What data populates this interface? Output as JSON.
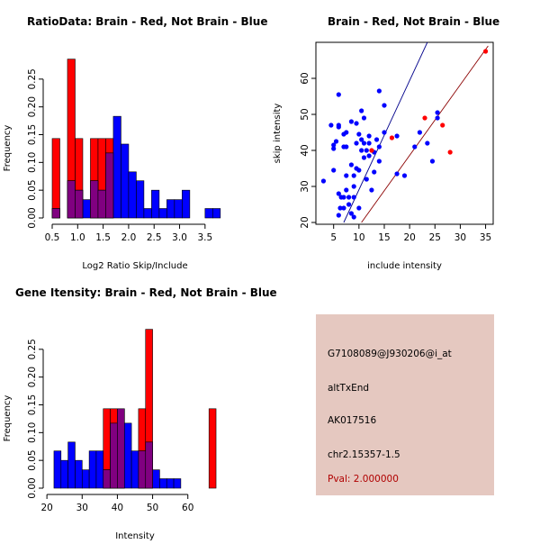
{
  "chart_data": [
    {
      "type": "bar",
      "subtype": "histogram-overlay",
      "title": "RatioData: Brain - Red, Not Brain - Blue",
      "xlabel": "Log2 Ratio Skip/Include",
      "ylabel": "Frequency",
      "xlim": [
        0.5,
        3.75
      ],
      "ylim": [
        0,
        0.3
      ],
      "bin_width": 0.15,
      "xticks": [
        0.5,
        1.0,
        1.5,
        2.0,
        2.5,
        3.0,
        3.5
      ],
      "xtick_labels": [
        "0.5",
        "1.0",
        "1.5",
        "2.0",
        "2.5",
        "3.0",
        "3.5"
      ],
      "yticks": [
        0,
        0.05,
        0.1,
        0.15,
        0.2,
        0.25
      ],
      "ytick_labels": [
        "0.00",
        "0.05",
        "0.10",
        "0.15",
        "0.20",
        "0.25"
      ],
      "series": [
        {
          "name": "Brain",
          "color": "#ff0000",
          "bins": [
            [
              0.5,
              0.143
            ],
            [
              0.8,
              0.286
            ],
            [
              0.95,
              0.143
            ],
            [
              1.25,
              0.143
            ],
            [
              1.4,
              0.143
            ],
            [
              1.55,
              0.143
            ]
          ]
        },
        {
          "name": "Not Brain",
          "color": "#0000ff",
          "bins": [
            [
              0.5,
              0.017
            ],
            [
              0.8,
              0.067
            ],
            [
              0.95,
              0.05
            ],
            [
              1.1,
              0.033
            ],
            [
              1.25,
              0.067
            ],
            [
              1.4,
              0.05
            ],
            [
              1.55,
              0.117
            ],
            [
              1.7,
              0.183
            ],
            [
              1.85,
              0.133
            ],
            [
              2.0,
              0.083
            ],
            [
              2.15,
              0.067
            ],
            [
              2.3,
              0.017
            ],
            [
              2.45,
              0.05
            ],
            [
              2.6,
              0.017
            ],
            [
              2.75,
              0.033
            ],
            [
              2.9,
              0.033
            ],
            [
              3.05,
              0.05
            ],
            [
              3.5,
              0.017
            ],
            [
              3.65,
              0.017
            ]
          ]
        }
      ]
    },
    {
      "type": "scatter",
      "title": "Brain - Red, Not Brain - Blue",
      "xlabel": "include intensity",
      "ylabel": "skip intensity",
      "xlim": [
        1.5,
        36.5
      ],
      "ylim": [
        19.5,
        70
      ],
      "xticks": [
        5,
        10,
        15,
        20,
        25,
        30,
        35
      ],
      "yticks": [
        20,
        30,
        40,
        50,
        60
      ],
      "series": [
        {
          "name": "Not Brain",
          "color": "#0000ff",
          "points": [
            [
              3,
              31.5
            ],
            [
              4.5,
              47
            ],
            [
              5,
              34.5
            ],
            [
              5,
              40.5
            ],
            [
              5,
              41.5
            ],
            [
              5.5,
              42.5
            ],
            [
              6,
              46.5
            ],
            [
              6,
              55.5
            ],
            [
              6,
              47
            ],
            [
              6,
              28
            ],
            [
              6,
              22
            ],
            [
              6.3,
              24
            ],
            [
              6.5,
              27
            ],
            [
              7,
              41
            ],
            [
              7,
              27
            ],
            [
              7,
              24
            ],
            [
              7,
              44.5
            ],
            [
              7.5,
              45
            ],
            [
              7.5,
              41
            ],
            [
              7.5,
              33
            ],
            [
              7.5,
              29
            ],
            [
              8,
              25
            ],
            [
              8,
              27
            ],
            [
              8.5,
              48
            ],
            [
              8.5,
              36
            ],
            [
              8.5,
              22.5
            ],
            [
              9,
              27
            ],
            [
              9,
              30
            ],
            [
              9,
              33
            ],
            [
              9,
              21.5
            ],
            [
              9.5,
              47.5
            ],
            [
              9.5,
              42
            ],
            [
              9.5,
              35
            ],
            [
              10,
              44.5
            ],
            [
              10,
              34.5
            ],
            [
              10,
              24
            ],
            [
              10.5,
              51
            ],
            [
              10.5,
              43
            ],
            [
              10.5,
              40
            ],
            [
              11,
              49
            ],
            [
              11,
              42
            ],
            [
              11,
              38
            ],
            [
              11.5,
              40
            ],
            [
              11.5,
              32
            ],
            [
              12,
              44
            ],
            [
              12,
              42
            ],
            [
              12,
              38.5
            ],
            [
              12.5,
              29
            ],
            [
              13,
              39.5
            ],
            [
              13,
              34
            ],
            [
              13.5,
              43
            ],
            [
              14,
              56.5
            ],
            [
              14,
              41
            ],
            [
              14,
              37
            ],
            [
              15,
              45
            ],
            [
              15,
              52.5
            ],
            [
              17.5,
              44
            ],
            [
              17.5,
              33.5
            ],
            [
              19,
              33
            ],
            [
              21,
              41
            ],
            [
              22,
              45
            ],
            [
              23.5,
              42
            ],
            [
              24.5,
              37
            ],
            [
              25.5,
              49
            ],
            [
              25.5,
              50.5
            ]
          ]
        },
        {
          "name": "Brain",
          "color": "#ff0000",
          "points": [
            [
              12.5,
              40
            ],
            [
              16.5,
              43.5
            ],
            [
              23,
              49
            ],
            [
              26.5,
              47
            ],
            [
              28,
              39.5
            ],
            [
              35,
              67.5
            ]
          ]
        }
      ],
      "reference_lines": [
        {
          "name": "fit-blue",
          "color": "#00008b",
          "from": [
            7,
            20
          ],
          "to": [
            23.5,
            70
          ]
        },
        {
          "name": "fit-red",
          "color": "#8b0000",
          "from": [
            10.5,
            20
          ],
          "to": [
            35.5,
            69
          ]
        }
      ]
    },
    {
      "type": "bar",
      "subtype": "histogram-overlay",
      "title": "Gene Itensity: Brain - Red, Not Brain - Blue",
      "xlabel": "Intensity",
      "ylabel": "Frequency",
      "xlim": [
        21.5,
        68.5
      ],
      "ylim": [
        0,
        0.3
      ],
      "bin_width": 2,
      "xticks": [
        20,
        30,
        40,
        50,
        60
      ],
      "xtick_labels": [
        "20",
        "30",
        "40",
        "50",
        "60"
      ],
      "yticks": [
        0,
        0.05,
        0.1,
        0.15,
        0.2,
        0.25
      ],
      "ytick_labels": [
        "0.00",
        "0.05",
        "0.10",
        "0.15",
        "0.20",
        "0.25"
      ],
      "series": [
        {
          "name": "Brain",
          "color": "#ff0000",
          "bins": [
            [
              36,
              0.143
            ],
            [
              38,
              0.143
            ],
            [
              40,
              0.143
            ],
            [
              46,
              0.143
            ],
            [
              48,
              0.286
            ],
            [
              66,
              0.143
            ]
          ]
        },
        {
          "name": "Not Brain",
          "color": "#0000ff",
          "bins": [
            [
              22,
              0.067
            ],
            [
              24,
              0.05
            ],
            [
              26,
              0.083
            ],
            [
              28,
              0.05
            ],
            [
              30,
              0.033
            ],
            [
              32,
              0.067
            ],
            [
              34,
              0.067
            ],
            [
              36,
              0.033
            ],
            [
              38,
              0.117
            ],
            [
              40,
              0.143
            ],
            [
              42,
              0.117
            ],
            [
              44,
              0.067
            ],
            [
              46,
              0.067
            ],
            [
              48,
              0.083
            ],
            [
              50,
              0.033
            ],
            [
              52,
              0.017
            ],
            [
              54,
              0.017
            ],
            [
              56,
              0.017
            ]
          ]
        }
      ]
    }
  ],
  "info_panel": {
    "probe_id": "G7108089@J930206@i_at",
    "event_type": "altTxEnd",
    "accession": "AK017516",
    "location": "chr2.15357-1.5",
    "pval": "Pval: 2.000000",
    "bg_color": "#e5c8c0"
  }
}
